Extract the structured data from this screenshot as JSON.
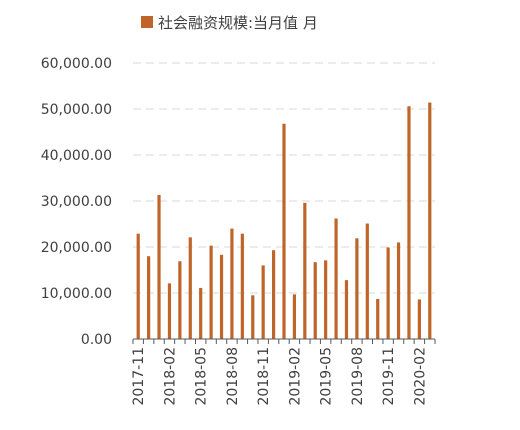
{
  "chart_data": {
    "type": "bar",
    "legend": {
      "label": "社会融资规模:当月值 月",
      "placement": "top-center"
    },
    "color": "#C0652A",
    "gridline_color": "#d9d9d9",
    "axis_color": "#595959",
    "ylim": [
      0,
      60000
    ],
    "yticks": [
      0,
      10000,
      20000,
      30000,
      40000,
      50000,
      60000
    ],
    "ytick_labels": [
      "0.00",
      "10,000.00",
      "20,000.00",
      "30,000.00",
      "40,000.00",
      "50,000.00",
      "60,000.00"
    ],
    "grid": true,
    "categories": [
      "2017-11",
      "2017-12",
      "2018-01",
      "2018-02",
      "2018-03",
      "2018-04",
      "2018-05",
      "2018-06",
      "2018-07",
      "2018-08",
      "2018-09",
      "2018-10",
      "2018-11",
      "2018-12",
      "2019-01",
      "2019-02",
      "2019-03",
      "2019-04",
      "2019-05",
      "2019-06",
      "2019-07",
      "2019-08",
      "2019-09",
      "2019-10",
      "2019-11",
      "2019-12",
      "2020-01",
      "2020-02",
      "2020-03"
    ],
    "values": [
      22900,
      18000,
      31300,
      12100,
      16900,
      22100,
      11100,
      20300,
      18300,
      24000,
      22900,
      9500,
      16000,
      19300,
      46800,
      9700,
      29600,
      16700,
      17100,
      26200,
      12800,
      21900,
      25100,
      8700,
      19900,
      21000,
      50600,
      8600,
      51400
    ],
    "x_tick_labels": [
      {
        "index": 0,
        "label": "2017-11"
      },
      {
        "index": 3,
        "label": "2018-02"
      },
      {
        "index": 6,
        "label": "2018-05"
      },
      {
        "index": 9,
        "label": "2018-08"
      },
      {
        "index": 12,
        "label": "2018-11"
      },
      {
        "index": 15,
        "label": "2019-02"
      },
      {
        "index": 18,
        "label": "2019-05"
      },
      {
        "index": 21,
        "label": "2019-08"
      },
      {
        "index": 24,
        "label": "2019-11"
      },
      {
        "index": 27,
        "label": "2020-02"
      }
    ]
  }
}
